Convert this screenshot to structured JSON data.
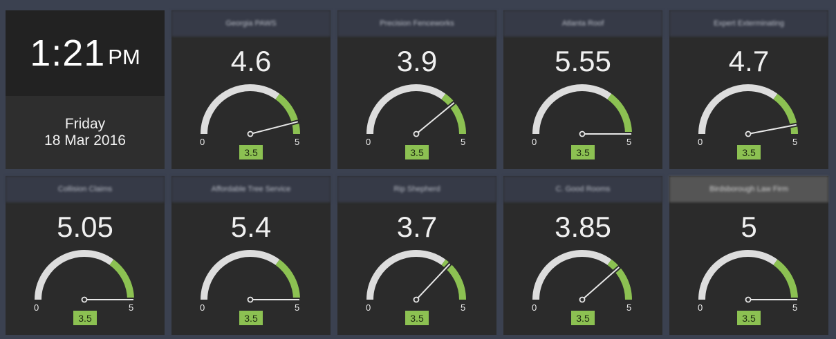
{
  "clock": {
    "time": "1:21",
    "ampm": "PM",
    "weekday": "Friday",
    "date": "18 Mar 2016"
  },
  "colors": {
    "background": "#3b4150",
    "tile": "#2b2b2b",
    "header": "#363a47",
    "gauge_track": "#dddddd",
    "gauge_band": "#8cc152",
    "target_badge": "#8cc152"
  },
  "gauges": [
    {
      "name": "Georgia PAWS",
      "value": "4.6",
      "numeric": 4.6,
      "min": "0",
      "max": "5",
      "target": "3.5",
      "highlight": false
    },
    {
      "name": "Precision Fenceworks",
      "value": "3.9",
      "numeric": 3.9,
      "min": "0",
      "max": "5",
      "target": "3.5",
      "highlight": false
    },
    {
      "name": "Atlanta Roof",
      "value": "5.55",
      "numeric": 5.55,
      "min": "0",
      "max": "5",
      "target": "3.5",
      "highlight": false
    },
    {
      "name": "Expert Exterminating",
      "value": "4.7",
      "numeric": 4.7,
      "min": "0",
      "max": "5",
      "target": "3.5",
      "highlight": false
    },
    {
      "name": "Collision Claims",
      "value": "5.05",
      "numeric": 5.05,
      "min": "0",
      "max": "5",
      "target": "3.5",
      "highlight": false
    },
    {
      "name": "Affordable Tree Service",
      "value": "5.4",
      "numeric": 5.4,
      "min": "0",
      "max": "5",
      "target": "3.5",
      "highlight": false
    },
    {
      "name": "Rip Shepherd",
      "value": "3.7",
      "numeric": 3.7,
      "min": "0",
      "max": "5",
      "target": "3.5",
      "highlight": false
    },
    {
      "name": "C. Good Rooms",
      "value": "3.85",
      "numeric": 3.85,
      "min": "0",
      "max": "5",
      "target": "3.5",
      "highlight": false
    },
    {
      "name": "Birdsborough Law Firm",
      "value": "5",
      "numeric": 5,
      "min": "0",
      "max": "5",
      "target": "3.5",
      "highlight": true
    }
  ]
}
